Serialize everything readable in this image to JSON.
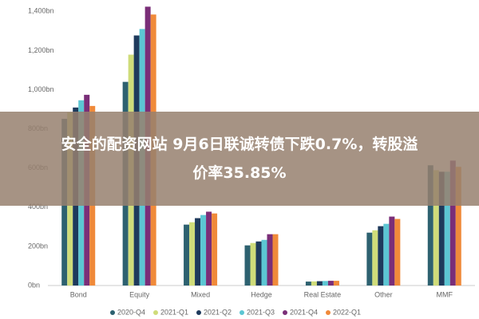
{
  "chart_data": {
    "type": "bar",
    "categories": [
      "Bond",
      "Equity",
      "Mixed",
      "Hedge",
      "Real Estate",
      "Other",
      "MMF"
    ],
    "series": [
      {
        "name": "2020-Q4",
        "color": "#2d6170",
        "values": [
          851,
          1040,
          311,
          205,
          20,
          270,
          614
        ]
      },
      {
        "name": "2021-Q1",
        "color": "#cfdc7a",
        "values": [
          884,
          1179,
          323,
          217,
          21,
          282,
          589
        ]
      },
      {
        "name": "2021-Q2",
        "color": "#1e3a5c",
        "values": [
          909,
          1277,
          344,
          225,
          22,
          303,
          581
        ]
      },
      {
        "name": "2021-Q3",
        "color": "#5cc6d3",
        "values": [
          946,
          1310,
          360,
          233,
          23,
          315,
          581
        ]
      },
      {
        "name": "2021-Q4",
        "color": "#7a2e78",
        "values": [
          974,
          1424,
          377,
          262,
          24,
          352,
          638
        ]
      },
      {
        "name": "2022-Q1",
        "color": "#f08a3a",
        "values": [
          917,
          1384,
          368,
          262,
          24,
          340,
          606
        ]
      }
    ],
    "ylim": [
      0,
      1450
    ],
    "yticks": [
      {
        "value": 0,
        "label": "0bn"
      },
      {
        "value": 200,
        "label": "200bn"
      },
      {
        "value": 400,
        "label": "400bn"
      },
      {
        "value": 600,
        "label": "600bn"
      },
      {
        "value": 800,
        "label": "800bn"
      },
      {
        "value": 1000,
        "label": "1,000bn"
      },
      {
        "value": 1200,
        "label": "1,200bn"
      },
      {
        "value": 1400,
        "label": "1,400bn"
      }
    ],
    "grid": false,
    "legend": "bottom"
  },
  "overlay": {
    "lines": [
      "安全的配资网站 9月6日联诚转债下跌0.7%，转股溢",
      "价率35.85%"
    ]
  }
}
